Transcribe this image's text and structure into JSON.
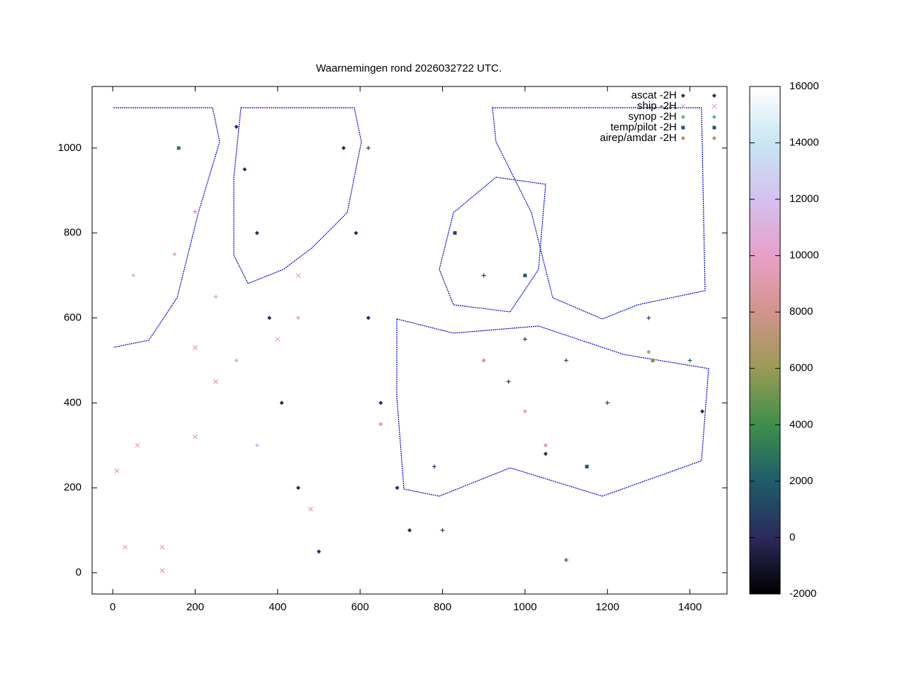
{
  "chart_data": {
    "type": "scatter",
    "title": "Waarnemingen rond 2026032722 UTC.",
    "xlim": [
      -50,
      1490
    ],
    "ylim": [
      -50,
      1145
    ],
    "xticks": [
      0,
      200,
      400,
      600,
      800,
      1000,
      1200,
      1400
    ],
    "yticks": [
      0,
      200,
      400,
      600,
      800,
      1000
    ],
    "zlim": [
      -2000,
      16000
    ],
    "zticks": [
      -2000,
      0,
      2000,
      4000,
      6000,
      8000,
      10000,
      12000,
      14000,
      16000
    ],
    "palette": [
      "#000000",
      "#2c2a5c",
      "#1f5c6a",
      "#3d8f4a",
      "#9a9a55",
      "#d2948c",
      "#e7a0c8",
      "#d4c0f0",
      "#c8e6f2",
      "#ffffff"
    ],
    "legend": "top-right",
    "series": [
      {
        "name": "ascat -2H",
        "marker": "diamond",
        "color": "#2c2a6c",
        "x": [
          300,
          320,
          350,
          380,
          410,
          450,
          500,
          560,
          590,
          620,
          650,
          690,
          720,
          1050,
          1430
        ],
        "y": [
          1050,
          950,
          800,
          600,
          400,
          200,
          50,
          1000,
          800,
          600,
          400,
          200,
          100,
          280,
          380
        ],
        "z": [
          0,
          0,
          0,
          0,
          0,
          0,
          0,
          0,
          0,
          0,
          0,
          0,
          0,
          0,
          0
        ]
      },
      {
        "name": "ship -2H",
        "marker": "x",
        "color": "#e7a0c8",
        "x": [
          30,
          120,
          10,
          60,
          200,
          250,
          400,
          450,
          480,
          200,
          120
        ],
        "y": [
          60,
          60,
          240,
          300,
          320,
          450,
          550,
          700,
          150,
          530,
          5
        ],
        "z": [
          10000,
          10000,
          9000,
          10000,
          10000,
          9000,
          10000,
          10000,
          10000,
          9000,
          9000
        ]
      },
      {
        "name": "synop -2H",
        "marker": "plus",
        "color": "#3d8f4a",
        "x": [
          620,
          780,
          900,
          1000,
          1100,
          1300,
          1400,
          800,
          1100,
          960,
          1200
        ],
        "y": [
          1000,
          250,
          700,
          550,
          500,
          600,
          500,
          100,
          30,
          450,
          400
        ],
        "z": [
          1000,
          1000,
          500,
          800,
          1000,
          600,
          1500,
          1000,
          500,
          200,
          800
        ]
      },
      {
        "name": "temp/pilot -2H",
        "marker": "square",
        "color": "#1f5c6a",
        "x": [
          160,
          830,
          1000,
          1150,
          1310
        ],
        "y": [
          1000,
          800,
          700,
          250,
          500
        ],
        "z": [
          3000,
          1000,
          2000,
          1500,
          5000
        ]
      },
      {
        "name": "airep/amdar -2H",
        "marker": "diamond",
        "color": "#9a9a55",
        "x": [
          50,
          150,
          250,
          200,
          300,
          350,
          450,
          650,
          900,
          1000,
          1050,
          1300
        ],
        "y": [
          700,
          750,
          650,
          850,
          500,
          300,
          600,
          350,
          500,
          380,
          300,
          520
        ],
        "z": [
          12000,
          11000,
          12000,
          10000,
          11000,
          12000,
          11000,
          9000,
          8000,
          10000,
          9000,
          7000
        ]
      }
    ]
  }
}
